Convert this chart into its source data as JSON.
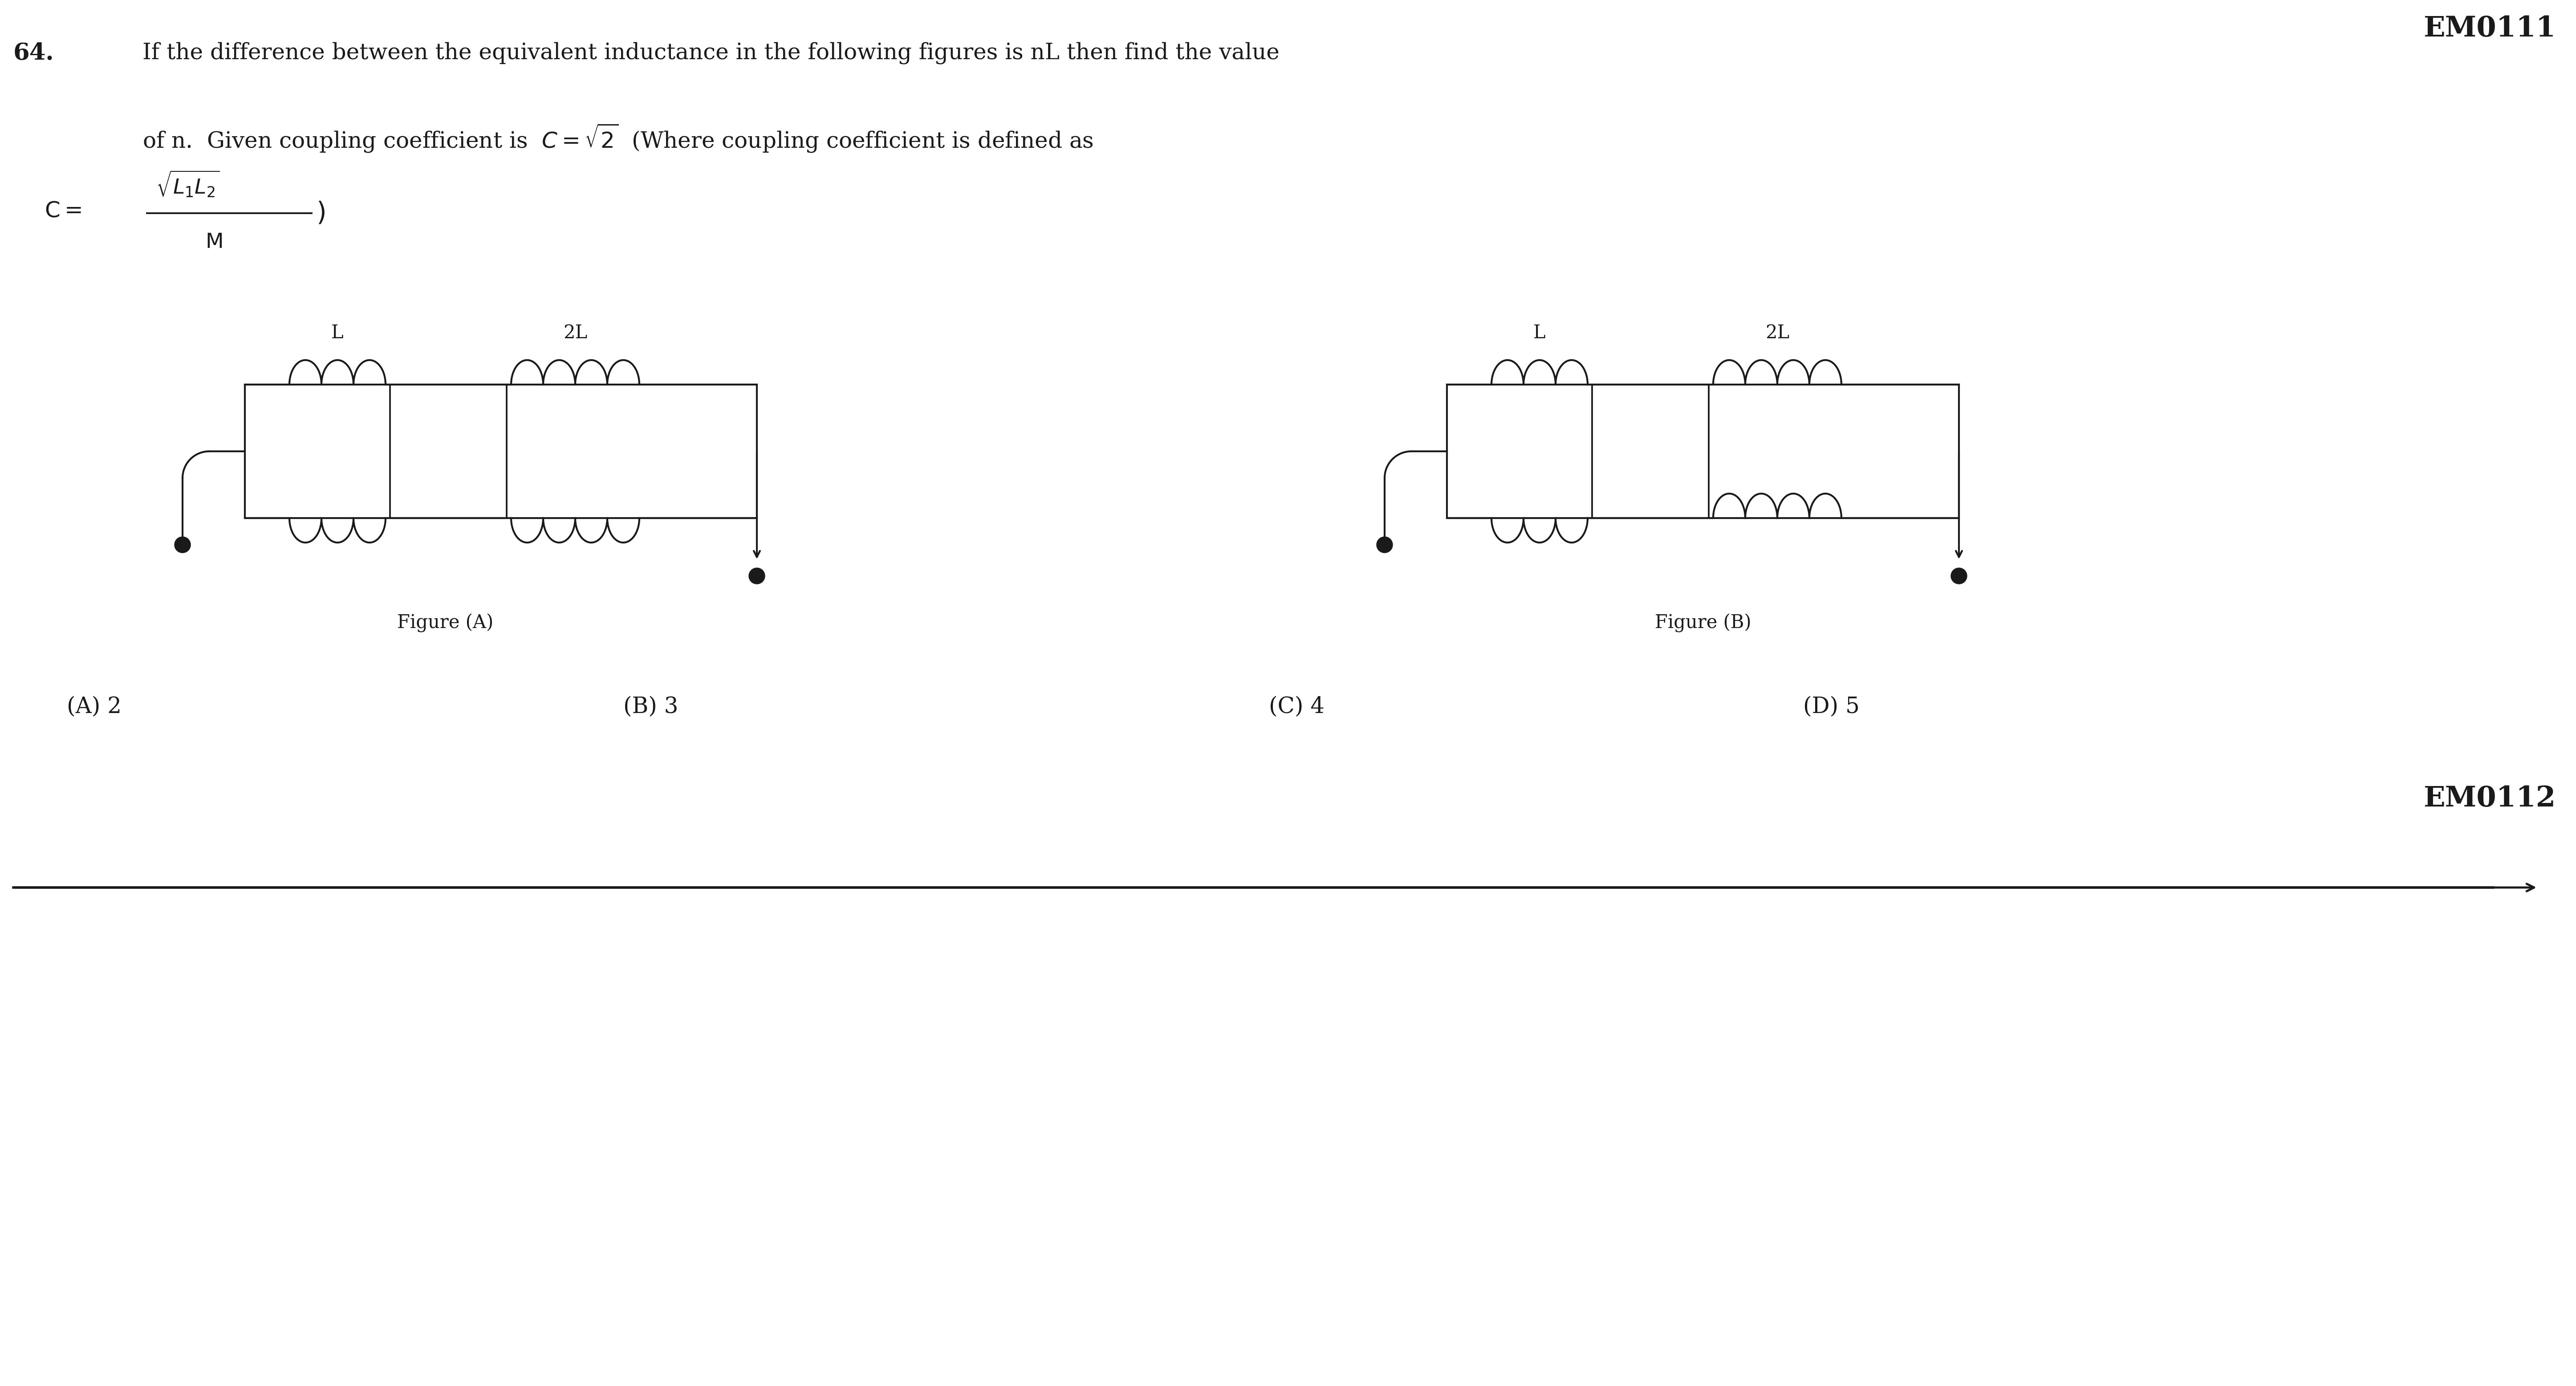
{
  "bg_color": "#ffffff",
  "text_color": "#1a1a1a",
  "header": "EM0111",
  "footer": "EM0112",
  "question_num": "64.",
  "line1": "If the difference between the equivalent inductance in the following figures is nL then find the value",
  "line2": "of n.  Given coupling coefficient is  $C = \\sqrt{2}$  (Where coupling coefficient is defined as",
  "fig_A_label": "Figure (A)",
  "fig_B_label": "Figure (B)",
  "options": [
    "(A) 2",
    "(B) 3",
    "(C) 4",
    "(D) 5"
  ]
}
